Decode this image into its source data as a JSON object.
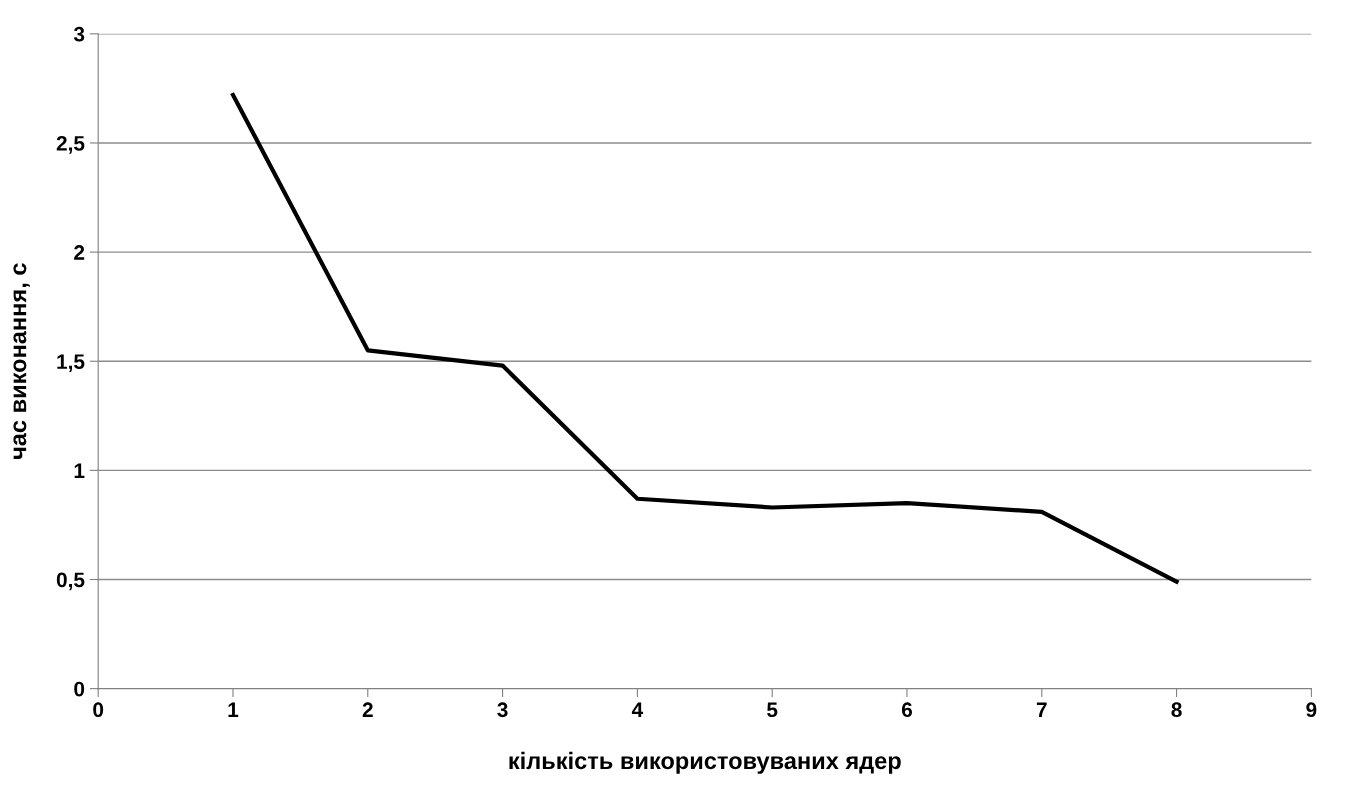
{
  "chart_data": {
    "type": "line",
    "xlabel": "кількість використовуваних ядер",
    "ylabel": "час виконання, с",
    "x": [
      1,
      2,
      3,
      4,
      5,
      6,
      7,
      8
    ],
    "series": [
      {
        "color": "#000000",
        "values": [
          2.72,
          1.55,
          1.48,
          0.87,
          0.83,
          0.85,
          0.81,
          0.49
        ]
      }
    ],
    "xlim": [
      0,
      9
    ],
    "xticks": [
      0,
      1,
      2,
      3,
      4,
      5,
      6,
      7,
      8,
      9
    ],
    "ylim": [
      0,
      3
    ],
    "yticks": [
      0,
      {
        "value": 0.5,
        "label": "0,5"
      },
      1,
      {
        "value": 1.5,
        "label": "1,5"
      },
      2,
      {
        "value": 2.5,
        "label": "2,5"
      },
      3
    ],
    "grid": "y",
    "legend": false,
    "marker": "none",
    "line_style": "solid"
  }
}
